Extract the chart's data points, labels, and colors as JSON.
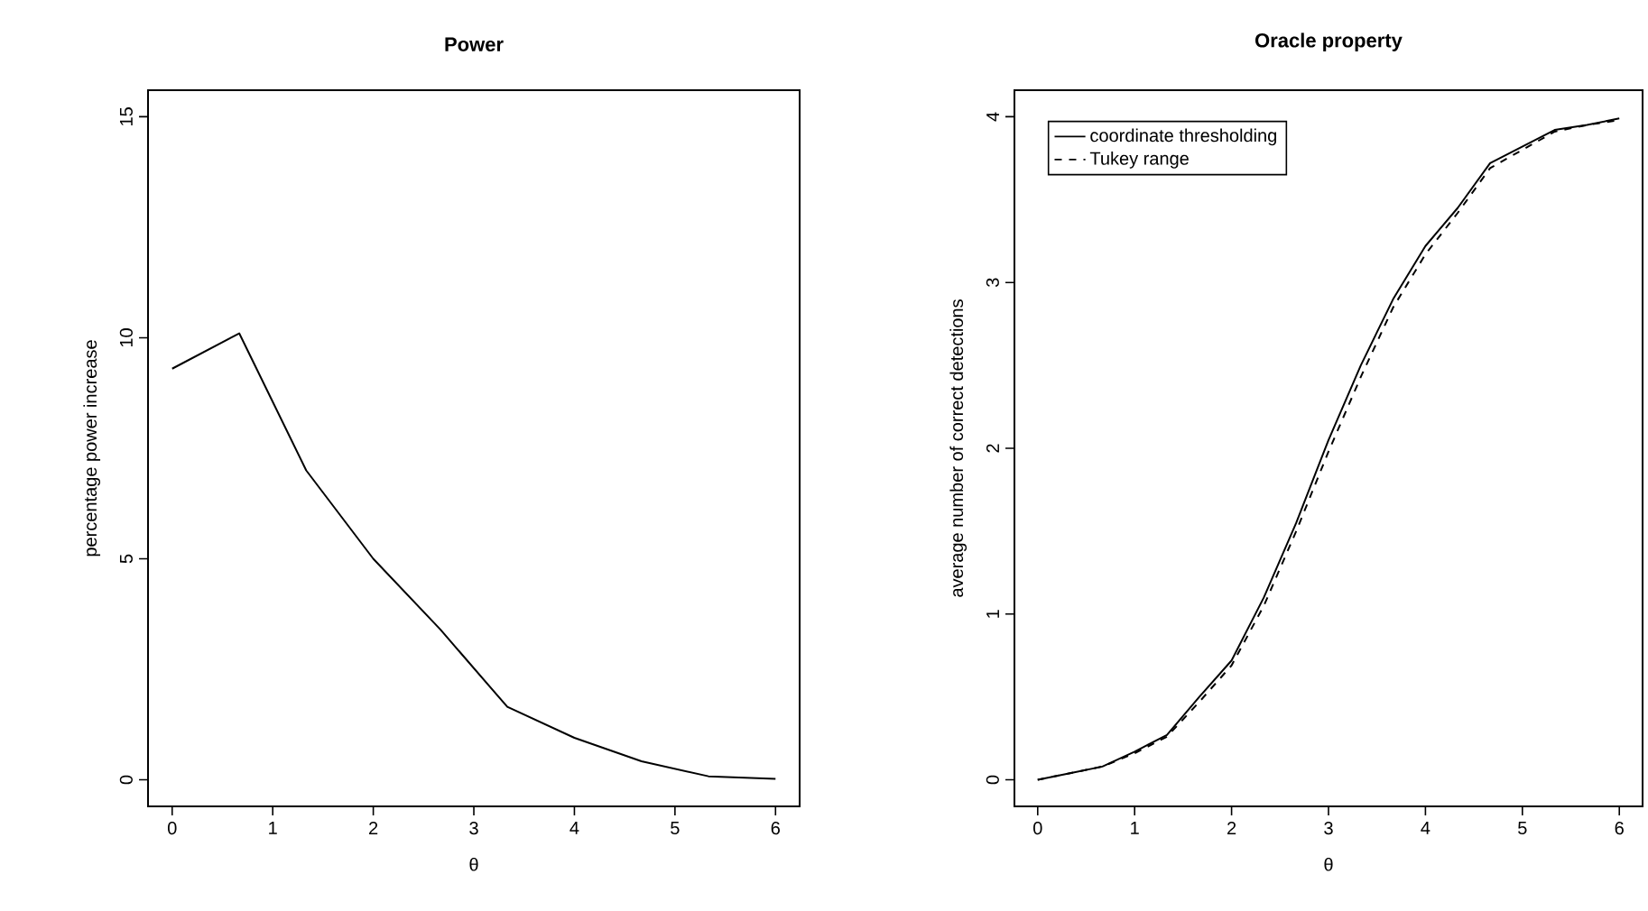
{
  "chart_data": [
    {
      "type": "line",
      "title": "Power",
      "xlabel": "θ",
      "ylabel": "percentage power increase",
      "xlim": [
        -0.24,
        6.24
      ],
      "ylim": [
        -0.6,
        15.6
      ],
      "xticks": [
        0,
        1,
        2,
        3,
        4,
        5,
        6
      ],
      "yticks": [
        0,
        5,
        10,
        15
      ],
      "legend": false,
      "x": [
        0,
        0.667,
        1.333,
        2,
        2.667,
        3.333,
        4,
        4.667,
        5.333,
        6
      ],
      "series": [
        {
          "color": "#000000",
          "line_style": "solid",
          "values": [
            9.3,
            10.1,
            7.0,
            5.0,
            3.4,
            1.65,
            0.95,
            0.42,
            0.08,
            0.02
          ]
        }
      ]
    },
    {
      "type": "line",
      "title": "Oracle property",
      "xlabel": "θ",
      "ylabel": "average number of correct detections",
      "xlim": [
        -0.24,
        6.24
      ],
      "ylim": [
        -0.16,
        4.16
      ],
      "xticks": [
        0,
        1,
        2,
        3,
        4,
        5,
        6
      ],
      "yticks": [
        0,
        1,
        2,
        3,
        4
      ],
      "legend": "top left",
      "x": [
        0,
        0.333,
        0.667,
        1,
        1.333,
        1.667,
        2,
        2.333,
        2.667,
        3,
        3.333,
        3.667,
        4,
        4.333,
        4.667,
        5,
        5.333,
        5.667,
        6
      ],
      "series": [
        {
          "name": "coordinate thresholding",
          "color": "#000000",
          "line_style": "solid",
          "values": [
            0,
            0.04,
            0.08,
            0.17,
            0.27,
            0.5,
            0.72,
            1.1,
            1.55,
            2.05,
            2.5,
            2.9,
            3.22,
            3.45,
            3.72,
            3.82,
            3.92,
            3.95,
            3.99
          ]
        },
        {
          "name": "Tukey range",
          "color": "#000000",
          "line_style": "dashed",
          "values": [
            0,
            0.04,
            0.08,
            0.16,
            0.26,
            0.47,
            0.69,
            1.05,
            1.5,
            1.98,
            2.43,
            2.85,
            3.17,
            3.42,
            3.69,
            3.8,
            3.91,
            3.95,
            3.98
          ]
        }
      ]
    }
  ]
}
